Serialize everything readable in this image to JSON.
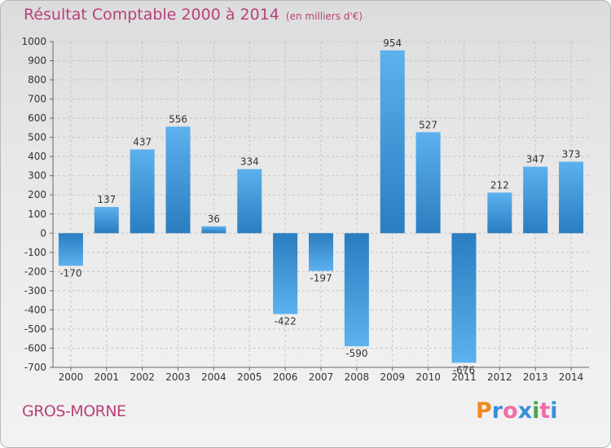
{
  "title": "Résultat Comptable 2000 à 2014",
  "subtitle": "(en milliers d'€)",
  "place": "GROS-MORNE",
  "brand": {
    "letters": [
      "P",
      "r",
      "o",
      "x",
      "i",
      "t",
      "i"
    ],
    "colors": [
      "#f08a1c",
      "#3a8fd8",
      "#ef6ea8",
      "#3a8fd8",
      "#4aa84e",
      "#ef6ea8",
      "#3a8fd8"
    ]
  },
  "colors": {
    "title": "#b8417a",
    "bar": "#3b94d9"
  },
  "chart_data": {
    "type": "bar",
    "categories": [
      "2000",
      "2001",
      "2002",
      "2003",
      "2004",
      "2005",
      "2006",
      "2007",
      "2008",
      "2009",
      "2010",
      "2011",
      "2012",
      "2013",
      "2014"
    ],
    "values": [
      -170,
      137,
      437,
      556,
      36,
      334,
      -422,
      -197,
      -590,
      954,
      527,
      -676,
      212,
      347,
      373
    ],
    "value_labels": [
      "-170",
      "137",
      "437",
      "556",
      "36",
      "334",
      "-422",
      "-197",
      "-590",
      "954",
      "527",
      "-676",
      "212",
      "347",
      "373"
    ],
    "yticks": [
      "1000",
      "900",
      "800",
      "700",
      "600",
      "500",
      "400",
      "300",
      "200",
      "100",
      "0",
      "-100",
      "-200",
      "-300",
      "-400",
      "-500",
      "-600",
      "-700"
    ],
    "ylim": [
      -700,
      1000
    ],
    "grid": true
  }
}
